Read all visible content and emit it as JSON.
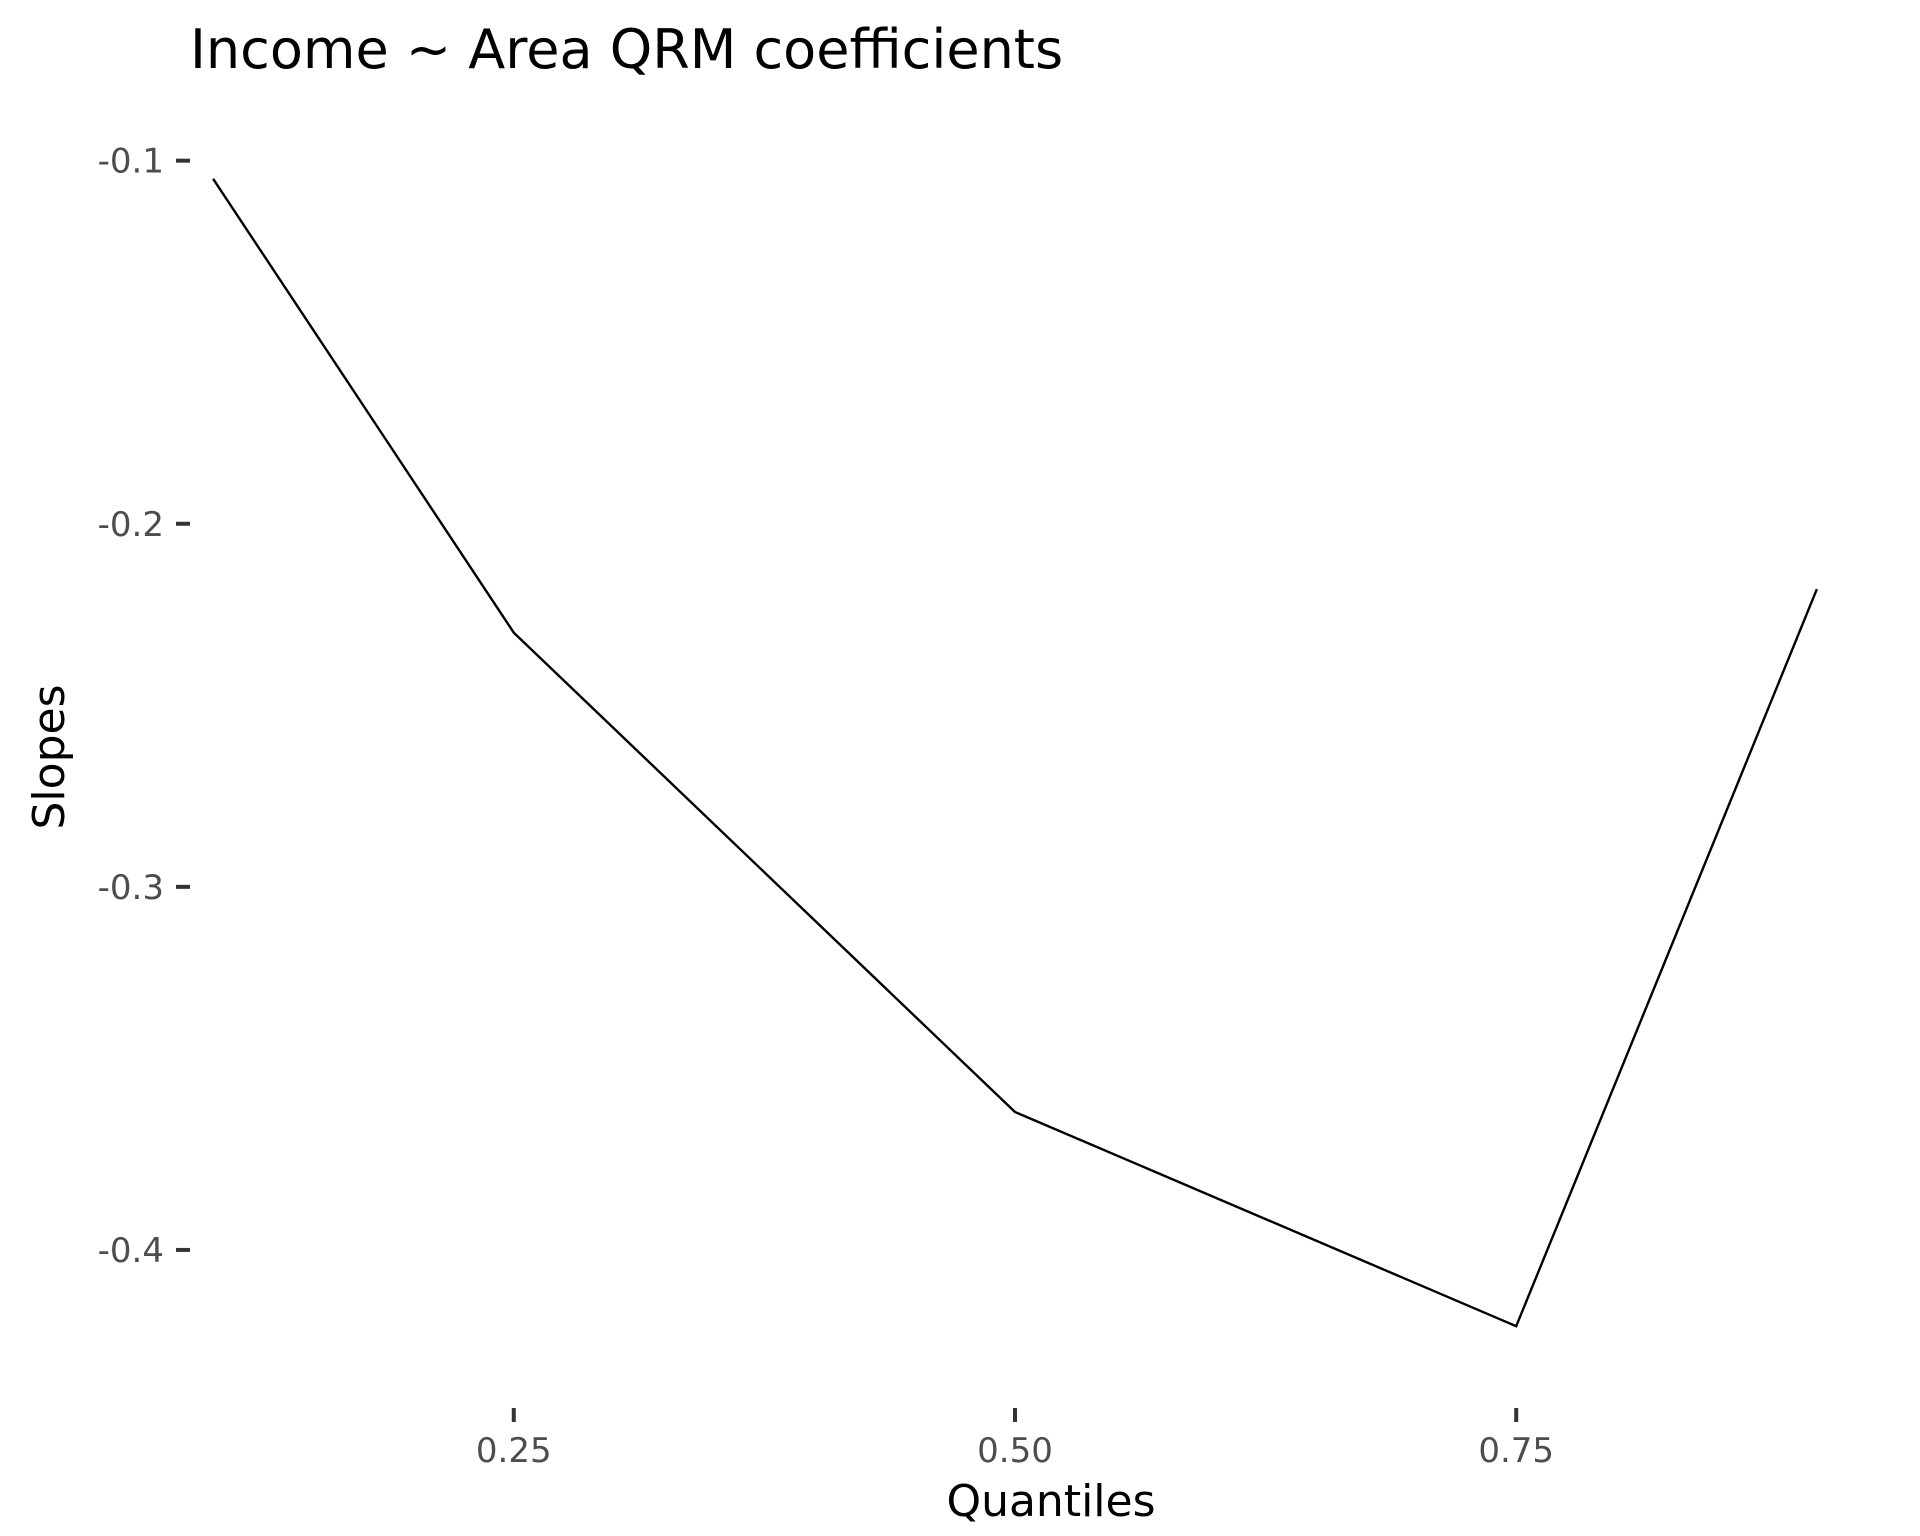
{
  "chart_data": {
    "type": "line",
    "title": "Income ~ Area QRM coefficients",
    "xlabel": "Quantiles",
    "ylabel": "Slopes",
    "x": [
      0.1,
      0.25,
      0.5,
      0.75,
      0.9
    ],
    "series": [
      {
        "values": [
          -0.105,
          -0.23,
          -0.362,
          -0.421,
          -0.218
        ]
      }
    ],
    "xticks": [
      0.25,
      0.5,
      0.75
    ],
    "xtick_labels": [
      "0.25",
      "0.50",
      "0.75"
    ],
    "yticks": [
      -0.1,
      -0.2,
      -0.3,
      -0.4
    ],
    "ytick_labels": [
      "-0.1",
      "-0.2",
      "-0.3",
      "-0.4"
    ],
    "xlim": [
      0.0895,
      0.9105
    ],
    "ylim": [
      -0.4372,
      -0.0888
    ],
    "grid": false,
    "line_color": "#000000"
  }
}
